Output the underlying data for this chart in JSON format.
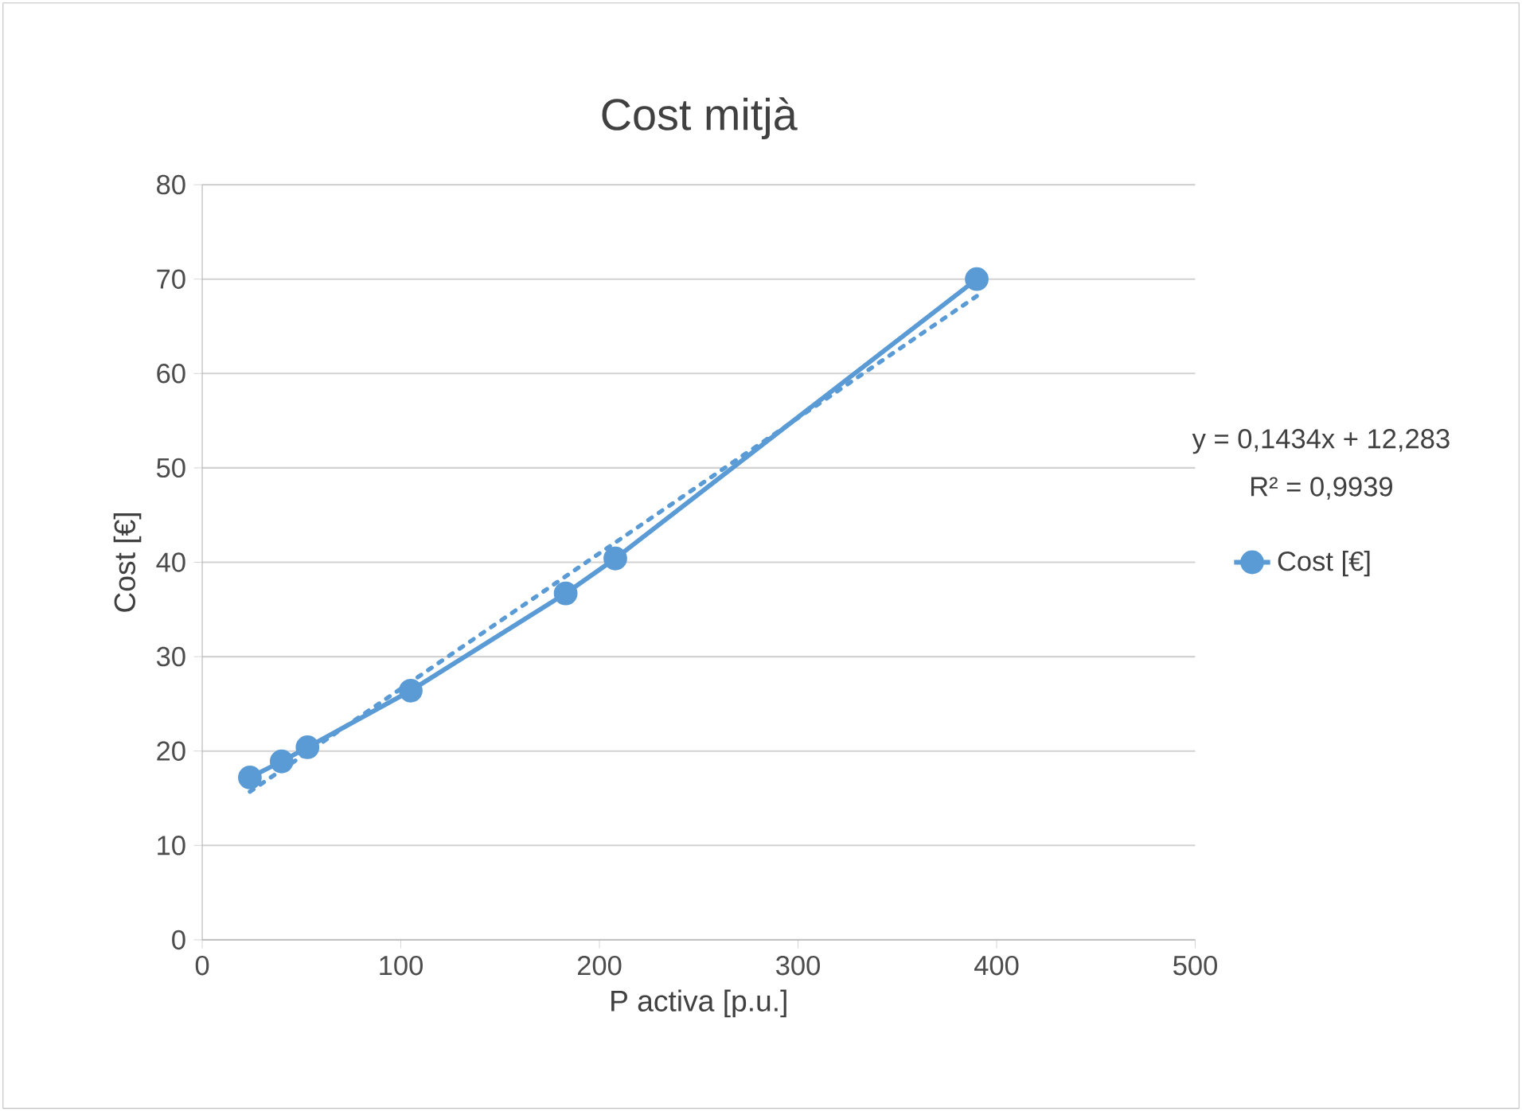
{
  "chart_data": {
    "type": "line",
    "title": "Cost mitjà",
    "xlabel": "P activa [p.u.]",
    "ylabel": "Cost [€]",
    "x": [
      24,
      40,
      53,
      105,
      183,
      208,
      390
    ],
    "series": [
      {
        "name": "Cost [€]",
        "color": "#5b9bd5",
        "values": [
          17.2,
          18.9,
          20.4,
          26.4,
          36.7,
          40.4,
          70.0
        ],
        "marker": "circle",
        "line_style": "solid"
      },
      {
        "type": "line",
        "color": "#5b9bd5",
        "x": [
          24,
          390
        ],
        "values": [
          15.7,
          68.2
        ],
        "marker": "none",
        "line_style": "dotted"
      }
    ],
    "annotations": [
      "y = 0,1434x + 12,283",
      "R² = 0,9939"
    ],
    "xlim": [
      0,
      500
    ],
    "xticks": [
      0,
      100,
      200,
      300,
      400,
      500
    ],
    "ylim": [
      0,
      80
    ],
    "yticks": [
      0,
      10,
      20,
      30,
      40,
      50,
      60,
      70,
      80
    ],
    "grid": "y",
    "legend": "right"
  }
}
